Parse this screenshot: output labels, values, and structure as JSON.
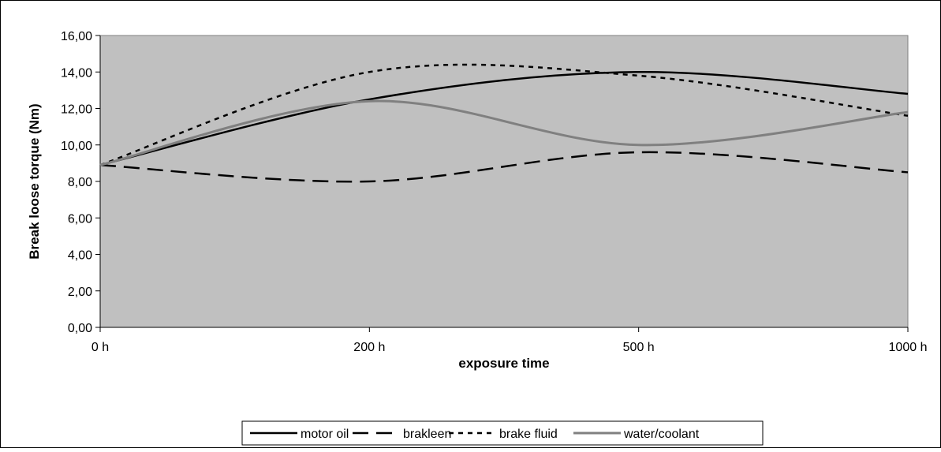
{
  "chart_data": {
    "type": "line",
    "categories": [
      "0 h",
      "200 h",
      "500 h",
      "1000 h"
    ],
    "xlabel": "exposure time",
    "ylabel": "Break loose torque (Nm)",
    "ylim": [
      0,
      16
    ],
    "yticks": [
      "0,00",
      "2,00",
      "4,00",
      "6,00",
      "8,00",
      "10,00",
      "12,00",
      "14,00",
      "16,00"
    ],
    "grid": false,
    "legend_position": "bottom",
    "series": [
      {
        "name": "motor oil",
        "values": [
          8.9,
          12.5,
          14.0,
          12.8
        ]
      },
      {
        "name": "brakleen",
        "values": [
          8.9,
          8.0,
          9.6,
          8.5
        ]
      },
      {
        "name": "brake fluid",
        "values": [
          8.9,
          14.0,
          13.8,
          11.6
        ]
      },
      {
        "name": "water/coolant",
        "values": [
          8.9,
          12.4,
          10.0,
          11.8
        ]
      }
    ],
    "colors": {
      "plot_background": "#c0c0c0",
      "motor_oil": "#000000",
      "brakleen": "#000000",
      "brake_fluid": "#000000",
      "water_coolant": "#808080"
    }
  }
}
